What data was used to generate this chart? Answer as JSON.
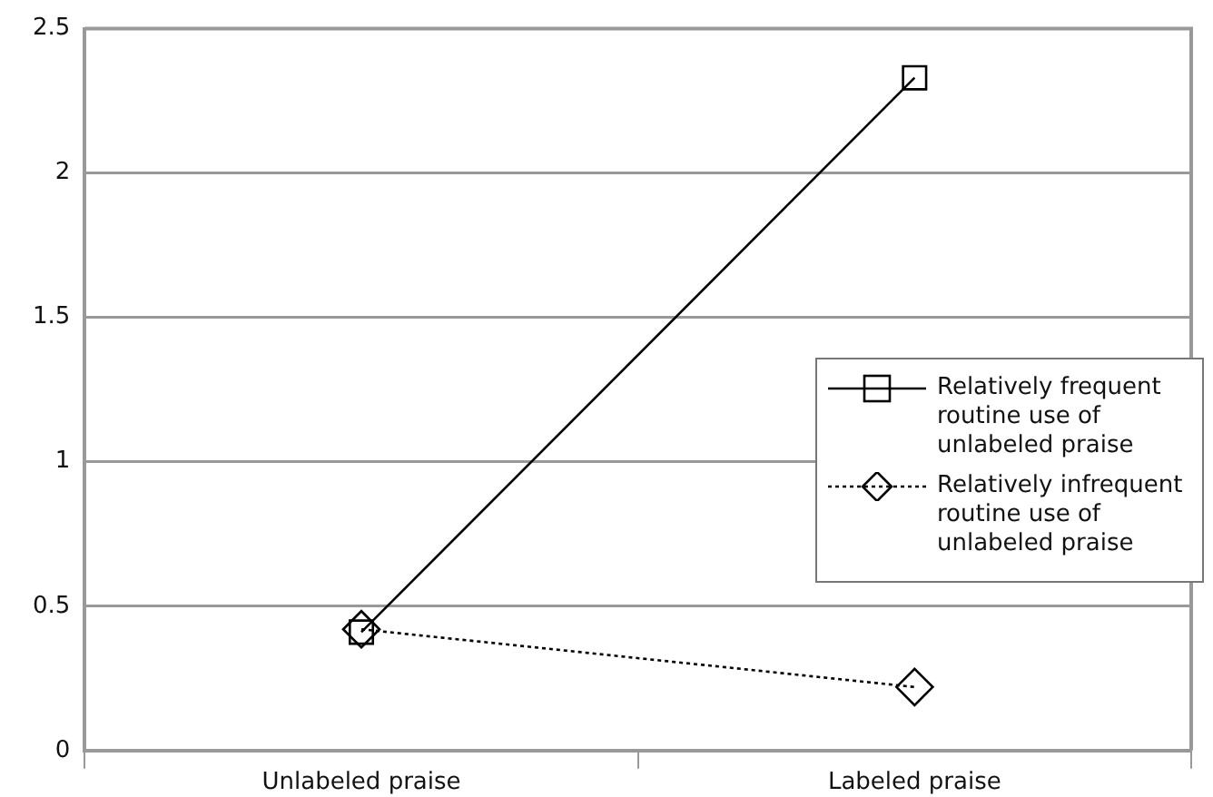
{
  "chart_data": {
    "type": "line",
    "categories": [
      "Unlabeled praise",
      "Labeled praise"
    ],
    "series": [
      {
        "name": "Relatively frequent routine use of unlabeled praise",
        "color": "#000000",
        "values": [
          0.41,
          2.33
        ],
        "marker": "square",
        "line_style": "solid"
      },
      {
        "name": "Relatively infrequent routine use of unlabeled praise",
        "color": "#000000",
        "values": [
          0.42,
          0.22
        ],
        "marker": "diamond",
        "line_style": "dotted"
      }
    ],
    "ylim": [
      0,
      2.5
    ],
    "yticks": [
      0,
      0.5,
      1,
      1.5,
      2,
      2.5
    ],
    "grid": "y",
    "legend": "right"
  }
}
